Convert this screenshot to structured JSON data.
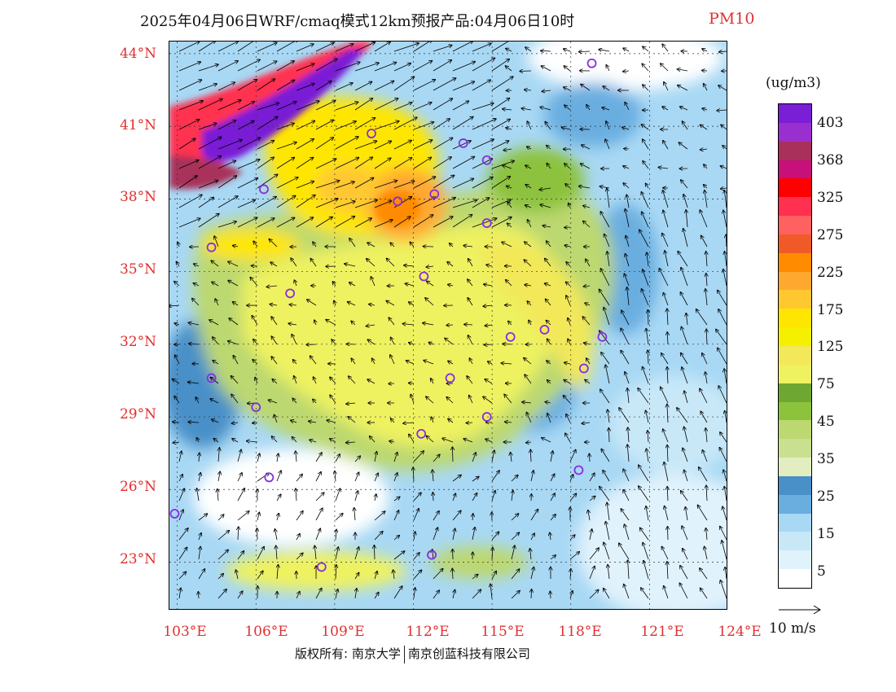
{
  "title": {
    "main": "2025年04月06日WRF/cmaq模式12km预报产品:04月06日10时",
    "variable": "PM10"
  },
  "latitude_labels": [
    "44°N",
    "41°N",
    "38°N",
    "35°N",
    "32°N",
    "29°N",
    "26°N",
    "23°N"
  ],
  "longitude_labels": [
    "103°E",
    "106°E",
    "109°E",
    "112°E",
    "115°E",
    "118°E",
    "121°E",
    "124°E"
  ],
  "legend": {
    "unit": "(ug/m3)",
    "labels": [
      "403",
      "368",
      "325",
      "275",
      "225",
      "175",
      "125",
      "75",
      "45",
      "35",
      "25",
      "15",
      "5"
    ],
    "colors": [
      "#7a1fd6",
      "#9a2fd0",
      "#a8305a",
      "#c8107a",
      "#ff0000",
      "#ff3050",
      "#ff6060",
      "#f05a28",
      "#ff8c00",
      "#ffa830",
      "#ffc830",
      "#ffe600",
      "#f5f000",
      "#f2e85a",
      "#eef260",
      "#6ea832",
      "#8cc23c",
      "#bcd870",
      "#c8e090",
      "#e2eec0",
      "#4a90c8",
      "#6aaee0",
      "#a8d8f4",
      "#c8e8f8",
      "#e0f2fc",
      "#ffffff"
    ]
  },
  "wind_key": {
    "label": "10 m/s"
  },
  "footer": {
    "left": "版权所有: 南京大学",
    "right": "南京创蓝科技有限公司"
  },
  "map": {
    "region": "China east",
    "lon_range": [
      102.7,
      124
    ],
    "lat_range": [
      21,
      44.5
    ],
    "stations": [
      {
        "lon": 118.8,
        "lat": 43.6
      },
      {
        "lon": 110.4,
        "lat": 40.7
      },
      {
        "lon": 113.9,
        "lat": 40.3
      },
      {
        "lon": 114.8,
        "lat": 39.6
      },
      {
        "lon": 106.3,
        "lat": 38.4
      },
      {
        "lon": 111.4,
        "lat": 37.9
      },
      {
        "lon": 112.8,
        "lat": 38.2
      },
      {
        "lon": 114.8,
        "lat": 37.0
      },
      {
        "lon": 104.3,
        "lat": 36.0
      },
      {
        "lon": 112.4,
        "lat": 34.8
      },
      {
        "lon": 107.3,
        "lat": 34.1
      },
      {
        "lon": 115.7,
        "lat": 32.3
      },
      {
        "lon": 117.0,
        "lat": 32.6
      },
      {
        "lon": 119.2,
        "lat": 32.3
      },
      {
        "lon": 118.5,
        "lat": 31.0
      },
      {
        "lon": 104.3,
        "lat": 30.6
      },
      {
        "lon": 113.4,
        "lat": 30.6
      },
      {
        "lon": 106.0,
        "lat": 29.4
      },
      {
        "lon": 114.8,
        "lat": 29.0
      },
      {
        "lon": 112.3,
        "lat": 28.3
      },
      {
        "lon": 118.3,
        "lat": 26.8
      },
      {
        "lon": 106.5,
        "lat": 26.5
      },
      {
        "lon": 102.9,
        "lat": 25.0
      },
      {
        "lon": 112.7,
        "lat": 23.3
      },
      {
        "lon": 108.5,
        "lat": 22.8
      }
    ]
  }
}
